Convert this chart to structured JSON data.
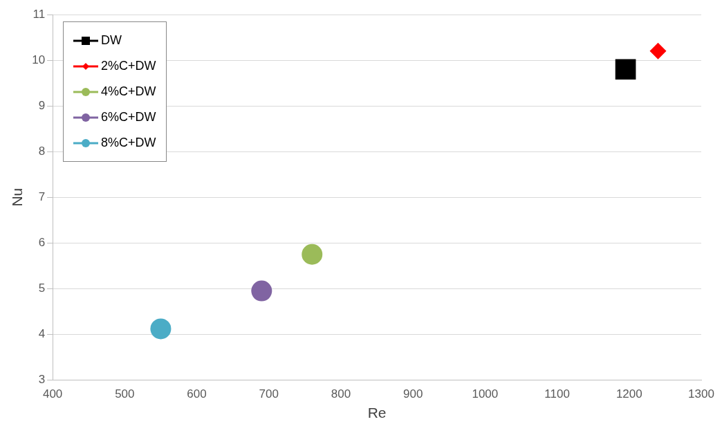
{
  "chart_data": {
    "type": "scatter",
    "xlabel": "Re",
    "ylabel": "Nu",
    "xlim": [
      400,
      1300
    ],
    "xticks": [
      400,
      500,
      600,
      700,
      800,
      900,
      1000,
      1100,
      1200,
      1300
    ],
    "ylim": [
      3,
      11
    ],
    "yticks": [
      3,
      4,
      5,
      6,
      7,
      8,
      9,
      10,
      11
    ],
    "grid": "y",
    "legend": "top left",
    "series": [
      {
        "name": "DW",
        "color": "#000000",
        "marker": "square",
        "x": [
          1195
        ],
        "values": [
          9.8
        ]
      },
      {
        "name": "2%C+DW",
        "color": "#ff0000",
        "marker": "diamond",
        "x": [
          1240
        ],
        "values": [
          10.2
        ]
      },
      {
        "name": "4%C+DW",
        "color": "#9bbb59",
        "marker": "circle",
        "x": [
          760
        ],
        "values": [
          5.75
        ]
      },
      {
        "name": "6%C+DW",
        "color": "#8064a2",
        "marker": "circle",
        "x": [
          690
        ],
        "values": [
          4.95
        ]
      },
      {
        "name": "8%C+DW",
        "color": "#4bacc6",
        "marker": "circle",
        "x": [
          550
        ],
        "values": [
          4.12
        ]
      }
    ]
  }
}
